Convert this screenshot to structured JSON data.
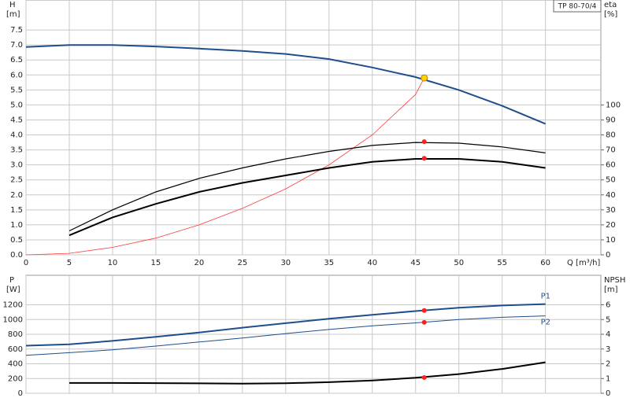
{
  "chart_data": [
    {
      "type": "line",
      "legend_title": "TP 80-70/4",
      "ylabel": "H",
      "yunit": "[m]",
      "y2label": "eta",
      "y2unit": "[%]",
      "xlabel": "Q [m³/h]",
      "xlim": [
        0,
        66.4
      ],
      "xticks": [
        0,
        5,
        10,
        15,
        20,
        25,
        30,
        35,
        40,
        45,
        50,
        55,
        60
      ],
      "ylim": [
        0,
        8.5
      ],
      "yticks": [
        {
          "value": 0,
          "label": "0.0"
        },
        0.5,
        {
          "value": 1,
          "label": "1.0"
        },
        1.5,
        {
          "value": 2,
          "label": "2.0"
        },
        2.5,
        {
          "value": 3,
          "label": "3.0"
        },
        3.5,
        {
          "value": 4,
          "label": "4.0"
        },
        4.5,
        {
          "value": 5,
          "label": "5.0"
        },
        5.5,
        {
          "value": 6,
          "label": "6.0"
        },
        6.5,
        {
          "value": 7,
          "label": "7.0"
        },
        7.5
      ],
      "y2lim": [
        0,
        170
      ],
      "y2ticks": [
        0,
        10,
        20,
        30,
        40,
        50,
        60,
        70,
        80,
        90,
        100
      ],
      "grid": true,
      "series": [
        {
          "color": "#1f4e8c",
          "width": 2,
          "x": [
            0,
            5,
            10,
            15,
            20,
            25,
            30,
            35,
            40,
            45,
            50,
            55,
            60
          ],
          "values": [
            6.93,
            7.0,
            7.0,
            6.95,
            6.88,
            6.8,
            6.7,
            6.53,
            6.25,
            5.93,
            5.5,
            4.97,
            4.37
          ]
        },
        {
          "color": "#ff3b3b",
          "width": 0.8,
          "x": [
            0,
            5,
            10,
            15,
            20,
            25,
            30,
            35,
            40,
            45,
            46
          ],
          "values": [
            0,
            0.05,
            0.25,
            0.56,
            1.0,
            1.55,
            2.2,
            3.0,
            4.0,
            5.35,
            5.9
          ]
        },
        {
          "color": "#000000",
          "width": 1.2,
          "axis": "y2",
          "x": [
            5,
            10,
            15,
            20,
            25,
            30,
            35,
            40,
            45,
            50,
            55,
            60
          ],
          "values": [
            16,
            30,
            42,
            51,
            58,
            64,
            69,
            73,
            75,
            74.5,
            72,
            68
          ]
        },
        {
          "color": "#000000",
          "width": 2,
          "axis": "y2",
          "x": [
            5,
            10,
            15,
            20,
            25,
            30,
            35,
            40,
            45,
            50,
            55,
            60
          ],
          "values": [
            13,
            25,
            34,
            42,
            48,
            53,
            58,
            62,
            64,
            64,
            62,
            58
          ]
        }
      ],
      "points": [
        {
          "x": 46,
          "y": 5.9,
          "color": "#ffd400"
        },
        {
          "x": 46,
          "y": 75.5,
          "color": "#ff2020",
          "axis": "y2"
        },
        {
          "x": 46,
          "y": 64.4,
          "color": "#ff2020",
          "axis": "y2"
        }
      ]
    },
    {
      "type": "line",
      "ylabel": "P",
      "yunit": "[W]",
      "y2label": "NPSH",
      "y2unit": "[m]",
      "xlim": [
        0,
        66.4
      ],
      "xticks": [
        0,
        5,
        10,
        15,
        20,
        25,
        30,
        35,
        40,
        45,
        50,
        55,
        60
      ],
      "ylim": [
        0,
        1600
      ],
      "yticks": [
        0,
        200,
        400,
        600,
        800,
        1000,
        1200
      ],
      "y2lim": [
        0,
        8
      ],
      "y2ticks": [
        0,
        1,
        2,
        3,
        4,
        5,
        6
      ],
      "grid": true,
      "series": [
        {
          "name": "P1",
          "color": "#1f4e8c",
          "width": 2,
          "x": [
            0,
            5,
            10,
            15,
            20,
            25,
            30,
            35,
            40,
            45,
            50,
            55,
            60
          ],
          "values": [
            645,
            665,
            710,
            765,
            825,
            890,
            950,
            1010,
            1065,
            1115,
            1160,
            1190,
            1210
          ]
        },
        {
          "name": "P2",
          "color": "#1f4e8c",
          "width": 1,
          "x": [
            0,
            5,
            10,
            15,
            20,
            25,
            30,
            35,
            40,
            45,
            50,
            55,
            60
          ],
          "values": [
            515,
            550,
            590,
            640,
            695,
            750,
            810,
            865,
            915,
            955,
            1000,
            1030,
            1050
          ]
        },
        {
          "color": "#000000",
          "width": 2,
          "axis": "y2",
          "x": [
            5,
            10,
            15,
            20,
            25,
            30,
            35,
            40,
            45,
            50,
            55,
            60
          ],
          "values": [
            0.7,
            0.7,
            0.69,
            0.67,
            0.65,
            0.68,
            0.75,
            0.87,
            1.05,
            1.3,
            1.65,
            2.1
          ]
        }
      ],
      "points": [
        {
          "x": 46,
          "y": 1123,
          "color": "#ff2020"
        },
        {
          "x": 46,
          "y": 962,
          "color": "#ff2020"
        },
        {
          "x": 46,
          "y": 1.07,
          "color": "#ff2020",
          "axis": "y2"
        }
      ]
    }
  ]
}
